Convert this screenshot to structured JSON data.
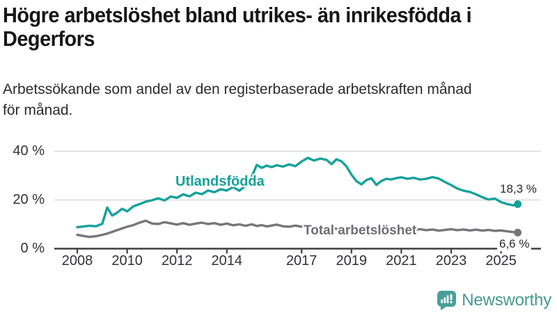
{
  "header": {
    "title_lines": [
      "Högre arbetslöshet bland utrikes- än inrikesfödda i",
      "Degerfors"
    ],
    "subtitle_lines": [
      "Arbetssökande som andel av den registerbaserade arbetskraften månad",
      "för månad."
    ]
  },
  "chart_data": {
    "type": "line",
    "title": "Högre arbetslöshet bland utrikes- än inrikesfödda i Degerfors",
    "subtitle": "Arbetssökande som andel av den registerbaserade arbetskraften månad för månad.",
    "grid": "horizontal",
    "legend": "inline-labels",
    "x_ticks": [
      2008,
      2010,
      2012,
      2014,
      2017,
      2019,
      2021,
      2023,
      2025
    ],
    "y_ticks": [
      0,
      20,
      40
    ],
    "y_tick_suffix": " %",
    "x_range": [
      2008,
      2025.67
    ],
    "y_range": [
      0,
      42
    ],
    "x": [
      2008.0,
      2008.25,
      2008.5,
      2008.75,
      2009.0,
      2009.2,
      2009.4,
      2009.6,
      2009.8,
      2010.0,
      2010.25,
      2010.5,
      2010.75,
      2011.0,
      2011.25,
      2011.5,
      2011.75,
      2012.0,
      2012.25,
      2012.5,
      2012.75,
      2013.0,
      2013.25,
      2013.5,
      2013.75,
      2014.0,
      2014.25,
      2014.5,
      2014.75,
      2015.0,
      2015.2,
      2015.4,
      2015.6,
      2015.8,
      2016.0,
      2016.25,
      2016.5,
      2016.75,
      2017.0,
      2017.25,
      2017.5,
      2017.75,
      2018.0,
      2018.2,
      2018.4,
      2018.6,
      2018.8,
      2019.0,
      2019.2,
      2019.4,
      2019.6,
      2019.8,
      2020.0,
      2020.2,
      2020.4,
      2020.6,
      2020.8,
      2021.0,
      2021.25,
      2021.5,
      2021.75,
      2022.0,
      2022.25,
      2022.5,
      2022.75,
      2023.0,
      2023.25,
      2023.5,
      2023.75,
      2024.0,
      2024.25,
      2024.5,
      2024.75,
      2025.0,
      2025.25,
      2025.5,
      2025.67
    ],
    "series": [
      {
        "name": "Utlandsfödda",
        "color": "#14a29a",
        "end_label": "18,3 %",
        "end_value": 18.3,
        "values": [
          8.8,
          9.1,
          9.4,
          9.2,
          10.2,
          16.9,
          13.6,
          14.8,
          16.4,
          15.3,
          17.4,
          18.3,
          19.3,
          19.9,
          20.7,
          19.8,
          21.4,
          20.9,
          22.3,
          21.5,
          23.0,
          22.4,
          23.9,
          23.2,
          24.4,
          23.9,
          25.3,
          23.8,
          25.8,
          29.6,
          34.4,
          33.2,
          34.1,
          33.5,
          34.3,
          33.7,
          34.6,
          33.9,
          35.8,
          37.3,
          36.2,
          37.0,
          36.5,
          34.7,
          36.7,
          35.9,
          33.8,
          30.4,
          27.7,
          26.4,
          28.2,
          28.9,
          26.2,
          27.8,
          28.7,
          28.4,
          29.0,
          29.3,
          28.7,
          29.1,
          28.4,
          28.7,
          29.4,
          28.8,
          27.4,
          26.1,
          24.7,
          23.8,
          23.3,
          22.3,
          21.1,
          20.2,
          20.6,
          19.1,
          18.3,
          17.8,
          18.3
        ]
      },
      {
        "name": "Total arbetslöshet",
        "color": "#76767b",
        "end_label": "6,6 %",
        "end_value": 6.6,
        "values": [
          5.7,
          5.2,
          4.8,
          5.1,
          5.7,
          6.2,
          6.9,
          7.6,
          8.3,
          9.0,
          9.7,
          10.7,
          11.5,
          10.3,
          10.1,
          10.9,
          10.4,
          9.9,
          10.5,
          9.8,
          10.3,
          10.7,
          10.1,
          10.5,
          9.8,
          10.3,
          9.6,
          10.0,
          9.4,
          10.0,
          9.3,
          9.7,
          9.1,
          9.5,
          9.9,
          9.2,
          9.0,
          9.5,
          9.0,
          9.3,
          8.6,
          8.9,
          8.4,
          8.7,
          8.1,
          8.4,
          7.9,
          7.7,
          8.0,
          7.4,
          7.7,
          7.3,
          7.3,
          8.9,
          9.1,
          8.6,
          8.4,
          8.3,
          8.0,
          7.8,
          8.0,
          7.6,
          7.9,
          7.4,
          7.7,
          8.0,
          7.6,
          7.9,
          7.5,
          7.8,
          7.4,
          7.7,
          7.3,
          7.5,
          7.1,
          6.8,
          6.6
        ]
      }
    ]
  },
  "footer": {
    "brand": "Newsworthy",
    "icon": "newsworthy-logo-icon",
    "logo_color": "#4a9e99",
    "text_color": "#459992"
  }
}
